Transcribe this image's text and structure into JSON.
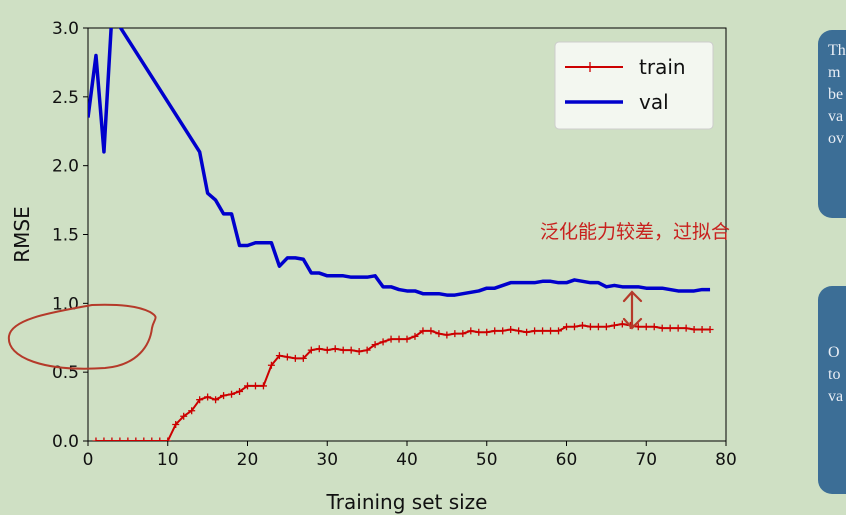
{
  "chart_data": {
    "type": "line",
    "xlabel": "Training set size",
    "ylabel": "RMSE",
    "xlim": [
      0,
      80
    ],
    "ylim": [
      0,
      3.0
    ],
    "xticks": [
      "0",
      "10",
      "20",
      "30",
      "40",
      "50",
      "60",
      "70",
      "80"
    ],
    "yticks": [
      "0.0",
      "0.5",
      "1.0",
      "1.5",
      "2.0",
      "2.5",
      "3.0"
    ],
    "legend_placement": "top-right",
    "grid": false,
    "series": [
      {
        "name": "train",
        "color": "#cc0000",
        "marker": "+",
        "x": [
          1,
          2,
          3,
          4,
          5,
          6,
          7,
          8,
          9,
          10,
          11,
          12,
          13,
          14,
          15,
          16,
          17,
          18,
          19,
          20,
          21,
          22,
          23,
          24,
          25,
          26,
          27,
          28,
          29,
          30,
          31,
          32,
          33,
          34,
          35,
          36,
          37,
          38,
          39,
          40,
          41,
          42,
          43,
          44,
          45,
          46,
          47,
          48,
          49,
          50,
          51,
          52,
          53,
          54,
          55,
          56,
          57,
          58,
          59,
          60,
          61,
          62,
          63,
          64,
          65,
          66,
          67,
          68,
          69,
          70,
          71,
          72,
          73,
          74,
          75,
          76,
          77,
          78
        ],
        "y": [
          0,
          0,
          0,
          0,
          0,
          0,
          0,
          0,
          0,
          0,
          0.12,
          0.18,
          0.22,
          0.3,
          0.32,
          0.3,
          0.33,
          0.34,
          0.36,
          0.4,
          0.4,
          0.4,
          0.55,
          0.62,
          0.61,
          0.6,
          0.6,
          0.66,
          0.67,
          0.66,
          0.67,
          0.66,
          0.66,
          0.65,
          0.66,
          0.7,
          0.72,
          0.74,
          0.74,
          0.74,
          0.76,
          0.8,
          0.8,
          0.78,
          0.77,
          0.78,
          0.78,
          0.8,
          0.79,
          0.79,
          0.8,
          0.8,
          0.81,
          0.8,
          0.79,
          0.8,
          0.8,
          0.8,
          0.8,
          0.83,
          0.83,
          0.84,
          0.83,
          0.83,
          0.83,
          0.84,
          0.85,
          0.84,
          0.83,
          0.83,
          0.83,
          0.82,
          0.82,
          0.82,
          0.82,
          0.81,
          0.81,
          0.81
        ]
      },
      {
        "name": "val",
        "color": "#0000cc",
        "marker": "",
        "x": [
          0,
          1,
          2,
          3,
          14,
          15,
          16,
          17,
          18,
          19,
          20,
          21,
          22,
          23,
          24,
          25,
          26,
          27,
          28,
          29,
          30,
          31,
          32,
          33,
          34,
          35,
          36,
          37,
          38,
          39,
          40,
          41,
          42,
          43,
          44,
          45,
          46,
          47,
          48,
          49,
          50,
          51,
          52,
          53,
          54,
          55,
          56,
          57,
          58,
          59,
          60,
          61,
          62,
          63,
          64,
          65,
          66,
          67,
          68,
          69,
          70,
          71,
          72,
          73,
          74,
          75,
          76,
          77,
          78
        ],
        "y": [
          2.35,
          2.8,
          2.1,
          3.1,
          2.1,
          1.8,
          1.75,
          1.65,
          1.65,
          1.42,
          1.42,
          1.44,
          1.44,
          1.44,
          1.27,
          1.33,
          1.33,
          1.32,
          1.22,
          1.22,
          1.2,
          1.2,
          1.2,
          1.19,
          1.19,
          1.19,
          1.2,
          1.12,
          1.12,
          1.1,
          1.09,
          1.09,
          1.07,
          1.07,
          1.07,
          1.06,
          1.06,
          1.07,
          1.08,
          1.09,
          1.11,
          1.11,
          1.13,
          1.15,
          1.15,
          1.15,
          1.15,
          1.16,
          1.16,
          1.15,
          1.15,
          1.17,
          1.16,
          1.15,
          1.15,
          1.12,
          1.13,
          1.12,
          1.12,
          1.12,
          1.11,
          1.11,
          1.11,
          1.1,
          1.09,
          1.09,
          1.09,
          1.1,
          1.1
        ]
      }
    ]
  },
  "annotations": {
    "chinese_note": "泛化能力较差，过拟合",
    "note_top_lines": [
      "Th",
      "m",
      "be",
      "va",
      "ov"
    ],
    "note_bottom_lines": [
      "O",
      "to",
      "va"
    ]
  },
  "colors": {
    "background": "#cfe0c4",
    "annotation": "#c8211e",
    "note_card": "#3c6e96"
  }
}
